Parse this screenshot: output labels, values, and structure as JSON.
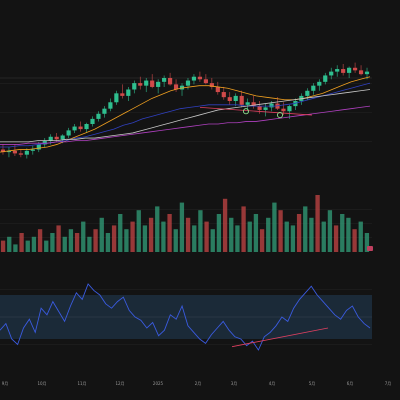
{
  "chart_data": [
    {
      "type": "candlestick",
      "panel": "price",
      "title": "",
      "xlabel": "",
      "ylabel": "",
      "x_ticks": [
        "9月",
        "10月",
        "11月",
        "12月",
        "2025",
        "2月",
        "3月",
        "4月",
        "5月",
        "6月",
        "7月"
      ],
      "candles": [
        {
          "o": 86,
          "h": 90,
          "l": 82,
          "c": 84
        },
        {
          "o": 84,
          "h": 88,
          "l": 80,
          "c": 85
        },
        {
          "o": 85,
          "h": 90,
          "l": 81,
          "c": 83
        },
        {
          "o": 83,
          "h": 86,
          "l": 80,
          "c": 82
        },
        {
          "o": 82,
          "h": 87,
          "l": 79,
          "c": 85
        },
        {
          "o": 85,
          "h": 89,
          "l": 82,
          "c": 86
        },
        {
          "o": 86,
          "h": 92,
          "l": 84,
          "c": 90
        },
        {
          "o": 90,
          "h": 95,
          "l": 88,
          "c": 93
        },
        {
          "o": 93,
          "h": 98,
          "l": 90,
          "c": 96
        },
        {
          "o": 96,
          "h": 99,
          "l": 92,
          "c": 94
        },
        {
          "o": 94,
          "h": 98,
          "l": 91,
          "c": 97
        },
        {
          "o": 97,
          "h": 103,
          "l": 95,
          "c": 101
        },
        {
          "o": 101,
          "h": 106,
          "l": 99,
          "c": 104
        },
        {
          "o": 104,
          "h": 108,
          "l": 100,
          "c": 102
        },
        {
          "o": 102,
          "h": 107,
          "l": 99,
          "c": 106
        },
        {
          "o": 106,
          "h": 112,
          "l": 104,
          "c": 110
        },
        {
          "o": 110,
          "h": 116,
          "l": 108,
          "c": 114
        },
        {
          "o": 114,
          "h": 120,
          "l": 111,
          "c": 118
        },
        {
          "o": 118,
          "h": 126,
          "l": 116,
          "c": 123
        },
        {
          "o": 123,
          "h": 132,
          "l": 121,
          "c": 130
        },
        {
          "o": 130,
          "h": 137,
          "l": 126,
          "c": 128
        },
        {
          "o": 128,
          "h": 135,
          "l": 124,
          "c": 133
        },
        {
          "o": 133,
          "h": 140,
          "l": 130,
          "c": 138
        },
        {
          "o": 138,
          "h": 143,
          "l": 133,
          "c": 136
        },
        {
          "o": 136,
          "h": 142,
          "l": 131,
          "c": 140
        },
        {
          "o": 140,
          "h": 145,
          "l": 134,
          "c": 135
        },
        {
          "o": 135,
          "h": 141,
          "l": 130,
          "c": 139
        },
        {
          "o": 139,
          "h": 144,
          "l": 135,
          "c": 142
        },
        {
          "o": 142,
          "h": 146,
          "l": 136,
          "c": 137
        },
        {
          "o": 137,
          "h": 141,
          "l": 131,
          "c": 133
        },
        {
          "o": 133,
          "h": 138,
          "l": 128,
          "c": 136
        },
        {
          "o": 136,
          "h": 142,
          "l": 133,
          "c": 140
        },
        {
          "o": 140,
          "h": 145,
          "l": 137,
          "c": 143
        },
        {
          "o": 143,
          "h": 147,
          "l": 139,
          "c": 141
        },
        {
          "o": 141,
          "h": 145,
          "l": 137,
          "c": 138
        },
        {
          "o": 138,
          "h": 142,
          "l": 133,
          "c": 135
        },
        {
          "o": 135,
          "h": 139,
          "l": 129,
          "c": 131
        },
        {
          "o": 131,
          "h": 135,
          "l": 125,
          "c": 127
        },
        {
          "o": 127,
          "h": 131,
          "l": 121,
          "c": 124
        },
        {
          "o": 124,
          "h": 130,
          "l": 120,
          "c": 128
        },
        {
          "o": 128,
          "h": 132,
          "l": 119,
          "c": 121
        },
        {
          "o": 121,
          "h": 126,
          "l": 116,
          "c": 123
        },
        {
          "o": 123,
          "h": 128,
          "l": 118,
          "c": 120
        },
        {
          "o": 120,
          "h": 124,
          "l": 114,
          "c": 117
        },
        {
          "o": 117,
          "h": 122,
          "l": 112,
          "c": 119
        },
        {
          "o": 119,
          "h": 124,
          "l": 116,
          "c": 122
        },
        {
          "o": 122,
          "h": 127,
          "l": 117,
          "c": 118
        },
        {
          "o": 118,
          "h": 123,
          "l": 113,
          "c": 116
        },
        {
          "o": 116,
          "h": 121,
          "l": 110,
          "c": 120
        },
        {
          "o": 120,
          "h": 126,
          "l": 117,
          "c": 124
        },
        {
          "o": 124,
          "h": 130,
          "l": 121,
          "c": 128
        },
        {
          "o": 128,
          "h": 134,
          "l": 125,
          "c": 132
        },
        {
          "o": 132,
          "h": 138,
          "l": 129,
          "c": 136
        },
        {
          "o": 136,
          "h": 141,
          "l": 132,
          "c": 139
        },
        {
          "o": 139,
          "h": 146,
          "l": 137,
          "c": 144
        },
        {
          "o": 144,
          "h": 150,
          "l": 141,
          "c": 147
        },
        {
          "o": 147,
          "h": 152,
          "l": 143,
          "c": 149
        },
        {
          "o": 149,
          "h": 153,
          "l": 144,
          "c": 146
        },
        {
          "o": 146,
          "h": 151,
          "l": 142,
          "c": 150
        },
        {
          "o": 150,
          "h": 154,
          "l": 146,
          "c": 148
        },
        {
          "o": 148,
          "h": 152,
          "l": 144,
          "c": 145
        },
        {
          "o": 145,
          "h": 150,
          "l": 141,
          "c": 147
        }
      ],
      "ma_lines": [
        {
          "color": "#f0a020",
          "values": [
            84,
            85,
            86,
            86,
            87,
            88,
            90,
            93,
            96,
            99,
            102,
            106,
            110,
            114,
            118,
            122,
            126,
            129,
            132,
            134,
            135,
            136,
            136,
            135,
            134,
            132,
            130,
            128,
            127,
            126,
            125,
            125,
            126,
            128,
            130,
            133,
            136,
            139,
            141,
            143
          ]
        },
        {
          "color": "#3040c0",
          "values": [
            88,
            88,
            89,
            89,
            90,
            91,
            92,
            93,
            95,
            96,
            98,
            100,
            102,
            105,
            107,
            110,
            112,
            114,
            116,
            118,
            119,
            120,
            121,
            121,
            121,
            121,
            120,
            120,
            120,
            120,
            121,
            122,
            124,
            126,
            128,
            130,
            132,
            134,
            136,
            138
          ]
        },
        {
          "color": "#b040c0",
          "values": [
            90,
            90,
            90,
            91,
            91,
            91,
            92,
            92,
            93,
            93,
            94,
            95,
            96,
            97,
            98,
            99,
            100,
            101,
            102,
            103,
            104,
            105,
            106,
            106,
            107,
            107,
            108,
            108,
            109,
            110,
            111,
            112,
            113,
            114,
            115,
            116,
            117,
            118,
            119,
            120
          ]
        },
        {
          "color": "#c8c8c8",
          "values": [
            92,
            92,
            92,
            92,
            93,
            93,
            93,
            94,
            94,
            95,
            95,
            96,
            97,
            98,
            99,
            101,
            103,
            105,
            107,
            109,
            111,
            113,
            115,
            117,
            118,
            119,
            120,
            121,
            122,
            123,
            124,
            125,
            126,
            127,
            128,
            129,
            130,
            131,
            132,
            133
          ]
        }
      ],
      "trendlines": [
        {
          "color": "#e04060",
          "from": [
            0.5,
            119
          ],
          "to": [
            0.78,
            113
          ]
        }
      ],
      "markers": [
        {
          "color": "#8ee08e",
          "x": 0.615,
          "y": 116
        },
        {
          "color": "#8ee08e",
          "x": 0.7,
          "y": 113
        }
      ]
    },
    {
      "type": "bar",
      "panel": "volume",
      "values": [
        3,
        4,
        2,
        5,
        3,
        4,
        6,
        3,
        5,
        7,
        4,
        6,
        5,
        8,
        4,
        6,
        9,
        5,
        7,
        10,
        6,
        8,
        11,
        7,
        9,
        12,
        8,
        10,
        6,
        13,
        9,
        7,
        11,
        8,
        6,
        10,
        14,
        9,
        7,
        12,
        8,
        10,
        6,
        9,
        13,
        11,
        8,
        7,
        10,
        12,
        9,
        15,
        8,
        11,
        7,
        10,
        9,
        6,
        8,
        5
      ],
      "colors": [
        "#2f8f6e",
        "#b04040"
      ]
    },
    {
      "type": "line",
      "panel": "rsi",
      "values": [
        38,
        44,
        30,
        25,
        40,
        48,
        36,
        58,
        52,
        64,
        55,
        46,
        60,
        72,
        66,
        80,
        74,
        70,
        62,
        58,
        64,
        68,
        56,
        50,
        47,
        40,
        45,
        33,
        38,
        52,
        48,
        60,
        42,
        36,
        30,
        26,
        34,
        40,
        46,
        38,
        32,
        30,
        24,
        28,
        20,
        32,
        36,
        42,
        50,
        46,
        58,
        66,
        72,
        78,
        70,
        64,
        58,
        52,
        48,
        56,
        60,
        50,
        44,
        40
      ],
      "band": [
        30,
        70
      ],
      "trendline": {
        "color": "#e04060",
        "from": [
          0.58,
          23
        ],
        "to": [
          0.82,
          40
        ]
      }
    }
  ],
  "colors": {
    "background": "#131313",
    "grid": "#2a2a2a",
    "rsi_band": "#1b2a38",
    "rsi_line": "#3a5be0",
    "up": "#2fbf8f",
    "down": "#d04a4a"
  }
}
